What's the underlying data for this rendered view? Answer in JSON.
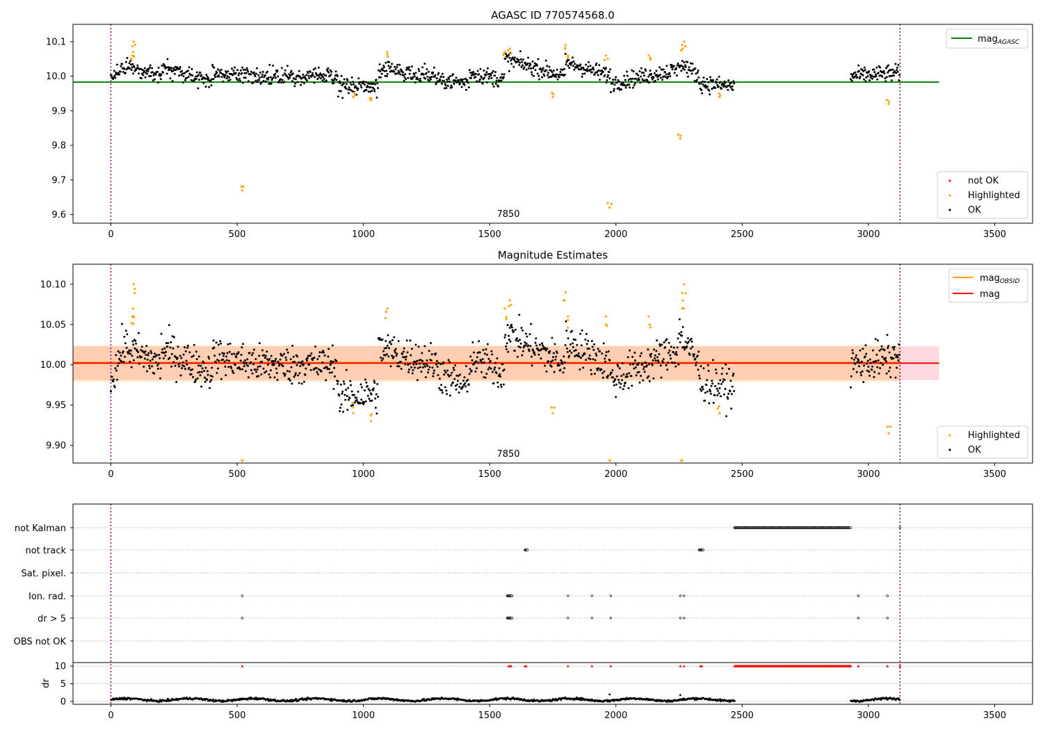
{
  "chart_data": [
    {
      "type": "scatter",
      "title": "AGASC ID 770574568.0",
      "annotation": "7850",
      "xlim": [
        -150,
        3650
      ],
      "ylim": [
        9.575,
        10.15
      ],
      "xticks": [
        0,
        500,
        1000,
        1500,
        2000,
        2500,
        3000,
        3500
      ],
      "xtick_labels": [
        "0",
        "500",
        "1000",
        "1500",
        "2000",
        "2500",
        "3000",
        "3500"
      ],
      "yticks": [
        9.6,
        9.7,
        9.8,
        9.9,
        10.0,
        10.1
      ],
      "ytick_labels": [
        "9.6",
        "9.7",
        "9.8",
        "9.9",
        "10.0",
        "10.1"
      ],
      "vlines": [
        0,
        3125
      ],
      "hline": {
        "y": 9.983,
        "x": [
          -150,
          3280
        ],
        "color": "#008000"
      },
      "legend_upper": {
        "position": "upper right",
        "label": "mag",
        "subscript": "AGASC"
      },
      "legend_lower": {
        "position": "lower right",
        "labels": [
          "not OK",
          "Highlighted",
          "OK"
        ]
      },
      "ok_segments": [
        {
          "x": [
            0,
            60
          ],
          "y": [
            9.99,
            10.03
          ]
        },
        {
          "x": [
            60,
            200
          ],
          "y": [
            10.03,
            10.0
          ]
        },
        {
          "x": [
            200,
            400
          ],
          "y": [
            10.02,
            9.99
          ]
        },
        {
          "x": [
            400,
            600
          ],
          "y": [
            10.01,
            10.0
          ]
        },
        {
          "x": [
            600,
            900
          ],
          "y": [
            10.0,
            10.0
          ]
        },
        {
          "x": [
            900,
            1060
          ],
          "y": [
            9.97,
            9.97
          ]
        },
        {
          "x": [
            1060,
            1300
          ],
          "y": [
            10.02,
            10.0
          ]
        },
        {
          "x": [
            1300,
            1420
          ],
          "y": [
            9.99,
            9.98
          ]
        },
        {
          "x": [
            1420,
            1560
          ],
          "y": [
            10.01,
            9.99
          ]
        },
        {
          "x": [
            1560,
            1800
          ],
          "y": [
            10.05,
            10.0
          ]
        },
        {
          "x": [
            1800,
            1980
          ],
          "y": [
            10.04,
            10.0
          ]
        },
        {
          "x": [
            1980,
            2250
          ],
          "y": [
            9.98,
            10.02
          ]
        },
        {
          "x": [
            2250,
            2330
          ],
          "y": [
            10.04,
            10.0
          ]
        },
        {
          "x": [
            2330,
            2470
          ],
          "y": [
            9.98,
            9.97
          ]
        },
        {
          "x": [
            2930,
            3125
          ],
          "y": [
            10.0,
            10.01
          ]
        }
      ],
      "highlighted": [
        {
          "x": 88,
          "y": 10.07
        },
        {
          "x": 90,
          "y": 10.1
        },
        {
          "x": 85,
          "y": 10.06
        },
        {
          "x": 520,
          "y": 9.67
        },
        {
          "x": 960,
          "y": 9.94
        },
        {
          "x": 1030,
          "y": 9.93
        },
        {
          "x": 1095,
          "y": 10.07
        },
        {
          "x": 1560,
          "y": 10.07
        },
        {
          "x": 1580,
          "y": 10.08
        },
        {
          "x": 1750,
          "y": 9.94
        },
        {
          "x": 1800,
          "y": 10.09
        },
        {
          "x": 1810,
          "y": 10.06
        },
        {
          "x": 1960,
          "y": 10.06
        },
        {
          "x": 1975,
          "y": 9.62
        },
        {
          "x": 2130,
          "y": 10.06
        },
        {
          "x": 2255,
          "y": 9.82
        },
        {
          "x": 2265,
          "y": 10.08
        },
        {
          "x": 2270,
          "y": 10.1
        },
        {
          "x": 2410,
          "y": 9.94
        },
        {
          "x": 3080,
          "y": 9.92
        }
      ]
    },
    {
      "type": "scatter",
      "title": "Magnitude Estimates",
      "annotation": "7850",
      "xlim": [
        -150,
        3650
      ],
      "ylim": [
        9.878,
        10.125
      ],
      "xticks": [
        0,
        500,
        1000,
        1500,
        2000,
        2500,
        3000,
        3500
      ],
      "xtick_labels": [
        "0",
        "500",
        "1000",
        "1500",
        "2000",
        "2500",
        "3000",
        "3500"
      ],
      "yticks": [
        9.9,
        9.95,
        10.0,
        10.05,
        10.1
      ],
      "ytick_labels": [
        "9.90",
        "9.95",
        "10.00",
        "10.05",
        "10.10"
      ],
      "vlines": [
        0,
        3125
      ],
      "mag_line": {
        "y": 10.002,
        "x": [
          -150,
          3280
        ],
        "color": "#ff0000"
      },
      "mag_band": {
        "y": [
          9.981,
          10.023
        ],
        "x": [
          -150,
          3280
        ],
        "color": "#ffc0cb"
      },
      "obsid_band": {
        "y": [
          9.979,
          10.024
        ],
        "x": [
          -150,
          3125
        ],
        "color": "#ffa500"
      },
      "obsid_line": {
        "y": 10.003,
        "x": [
          -150,
          3125
        ],
        "color": "#ffa500"
      },
      "legend_upper": {
        "position": "upper right",
        "labels": [
          "mag",
          "mag"
        ],
        "subscripts": [
          "OBSID",
          ""
        ]
      },
      "legend_lower": {
        "position": "lower right",
        "labels": [
          "Highlighted",
          "OK"
        ]
      },
      "ok_segments": [
        {
          "x": [
            0,
            60
          ],
          "y": [
            9.98,
            10.03
          ]
        },
        {
          "x": [
            60,
            200
          ],
          "y": [
            10.02,
            10.0
          ]
        },
        {
          "x": [
            200,
            400
          ],
          "y": [
            10.02,
            9.99
          ]
        },
        {
          "x": [
            400,
            600
          ],
          "y": [
            10.01,
            10.0
          ]
        },
        {
          "x": [
            600,
            900
          ],
          "y": [
            10.0,
            10.0
          ]
        },
        {
          "x": [
            900,
            1060
          ],
          "y": [
            9.96,
            9.965
          ]
        },
        {
          "x": [
            1060,
            1300
          ],
          "y": [
            10.02,
            10.0
          ]
        },
        {
          "x": [
            1300,
            1420
          ],
          "y": [
            9.99,
            9.97
          ]
        },
        {
          "x": [
            1420,
            1560
          ],
          "y": [
            10.01,
            9.99
          ]
        },
        {
          "x": [
            1560,
            1800
          ],
          "y": [
            10.04,
            10.0
          ]
        },
        {
          "x": [
            1800,
            1980
          ],
          "y": [
            10.03,
            10.0
          ]
        },
        {
          "x": [
            1980,
            2250
          ],
          "y": [
            9.98,
            10.02
          ]
        },
        {
          "x": [
            2250,
            2330
          ],
          "y": [
            10.04,
            10.0
          ]
        },
        {
          "x": [
            2330,
            2470
          ],
          "y": [
            9.98,
            9.97
          ]
        },
        {
          "x": [
            2930,
            3125
          ],
          "y": [
            10.0,
            10.01
          ]
        }
      ],
      "highlighted": [
        {
          "x": 88,
          "y": 10.07
        },
        {
          "x": 90,
          "y": 10.1
        },
        {
          "x": 85,
          "y": 10.06
        },
        {
          "x": 960,
          "y": 9.94
        },
        {
          "x": 1030,
          "y": 9.93
        },
        {
          "x": 1095,
          "y": 10.07
        },
        {
          "x": 1560,
          "y": 10.07
        },
        {
          "x": 1580,
          "y": 10.08
        },
        {
          "x": 1750,
          "y": 9.94
        },
        {
          "x": 1800,
          "y": 10.09
        },
        {
          "x": 1810,
          "y": 10.06
        },
        {
          "x": 1960,
          "y": 10.06
        },
        {
          "x": 2130,
          "y": 10.06
        },
        {
          "x": 2265,
          "y": 10.08
        },
        {
          "x": 2270,
          "y": 10.1
        },
        {
          "x": 2410,
          "y": 9.94
        },
        {
          "x": 3080,
          "y": 9.915
        }
      ],
      "clipped_markers": [
        {
          "x": 520
        },
        {
          "x": 1975
        },
        {
          "x": 2260
        }
      ]
    },
    {
      "type": "scatter",
      "xlim": [
        -150,
        3650
      ],
      "categories": [
        "not Kalman",
        "not track",
        "Sat. pixel.",
        "Ion. rad.",
        "dr > 5",
        "OBS not OK"
      ],
      "xticks": [
        0,
        500,
        1000,
        1500,
        2000,
        2500,
        3000,
        3500
      ],
      "xtick_labels": [
        "0",
        "500",
        "1000",
        "1500",
        "2000",
        "2500",
        "3000",
        "3500"
      ],
      "vlines": [
        0,
        3125
      ],
      "flags": {
        "not Kalman": {
          "ranges": [
            [
              2470,
              2930
            ]
          ],
          "points": [
            3125
          ]
        },
        "not track": {
          "ranges": [
            [
              1640,
              1650
            ],
            [
              2330,
              2345
            ]
          ],
          "points": []
        },
        "Sat. pixel.": {
          "ranges": [],
          "points": []
        },
        "Ion. rad.": {
          "ranges": [
            [
              1570,
              1590
            ]
          ],
          "points": [
            520,
            1810,
            1905,
            1980,
            2255,
            2270,
            2960,
            3075
          ]
        },
        "dr > 5": {
          "ranges": [
            [
              1570,
              1590
            ]
          ],
          "points": [
            520,
            1810,
            1905,
            1980,
            2255,
            2270,
            2960,
            3075
          ]
        },
        "OBS not OK": {
          "ranges": [],
          "points": []
        }
      },
      "dr": {
        "ylabel": "dr",
        "yticks": [
          0,
          5,
          10
        ],
        "ytick_labels": [
          "0",
          "5",
          "10"
        ],
        "ylim": [
          -0.8,
          11
        ],
        "baseline_segments": [
          [
            0,
            2470
          ],
          [
            2930,
            3125
          ]
        ],
        "typical": 0.5,
        "capped_points": [
          520,
          1575,
          1580,
          1585,
          1640,
          1645,
          1810,
          1905,
          1980,
          2255,
          2270,
          2335,
          2340,
          2960,
          3075,
          3125
        ],
        "capped_range": [
          2470,
          2930
        ],
        "cap_value": 10,
        "outliers": [
          {
            "x": 1975,
            "y": 2.0
          },
          {
            "x": 2255,
            "y": 1.8
          }
        ]
      }
    }
  ],
  "colors": {
    "ok": "#000000",
    "highlighted": "#ffa500",
    "not_ok": "#ff0000",
    "vline": "#800080",
    "agasc": "#008000",
    "grid": "#b0b0b0"
  }
}
